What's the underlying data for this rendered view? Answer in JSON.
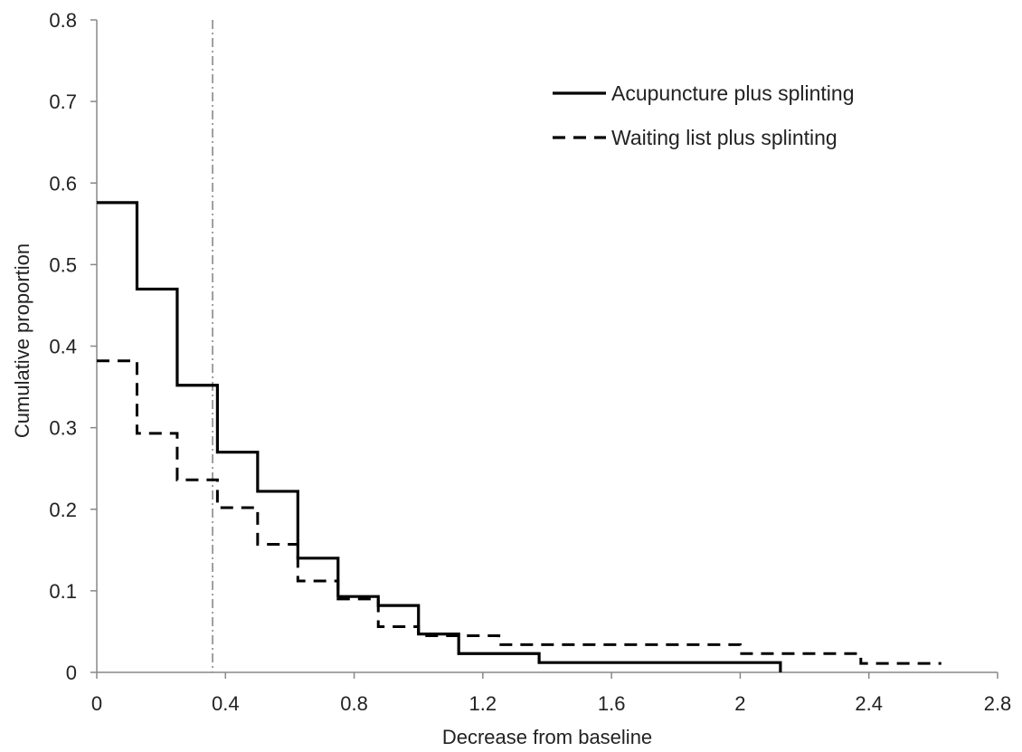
{
  "chart_data": {
    "type": "line",
    "step": true,
    "xlabel": "Decrease from baseline",
    "ylabel": "Cumulative proportion",
    "xlim": [
      0,
      2.8
    ],
    "ylim": [
      0,
      0.8
    ],
    "x_ticks": [
      0,
      0.4,
      0.8,
      1.2,
      1.6,
      2,
      2.4,
      2.8
    ],
    "x_tick_labels": [
      "0",
      "0.4",
      "0.8",
      "1.2",
      "1.6",
      "2",
      "2.4",
      "2.8"
    ],
    "y_ticks": [
      0,
      0.1,
      0.2,
      0.3,
      0.4,
      0.5,
      0.6,
      0.7,
      0.8
    ],
    "y_tick_labels": [
      "0",
      "0.1",
      "0.2",
      "0.3",
      "0.4",
      "0.5",
      "0.6",
      "0.7",
      "0.8"
    ],
    "grid": false,
    "legend_position": "top-right",
    "reference_line": {
      "x": 0.36,
      "style": "dash-dot",
      "color": "#888888"
    },
    "series": [
      {
        "name": "Acupuncture plus splinting",
        "style": "solid",
        "color": "#000000",
        "x": [
          0,
          0.125,
          0.25,
          0.375,
          0.5,
          0.625,
          0.75,
          0.875,
          1.0,
          1.125,
          1.375,
          2.125
        ],
        "y": [
          0.576,
          0.47,
          0.352,
          0.27,
          0.222,
          0.14,
          0.093,
          0.082,
          0.047,
          0.023,
          0.012,
          0
        ]
      },
      {
        "name": "Waiting list plus splinting",
        "style": "dashed",
        "color": "#000000",
        "x": [
          0,
          0.125,
          0.25,
          0.375,
          0.5,
          0.625,
          0.75,
          0.875,
          1.0,
          1.25,
          2.0,
          2.375,
          2.625
        ],
        "y": [
          0.382,
          0.293,
          0.236,
          0.202,
          0.157,
          0.112,
          0.09,
          0.056,
          0.045,
          0.034,
          0.023,
          0.011,
          0.011
        ]
      }
    ]
  }
}
